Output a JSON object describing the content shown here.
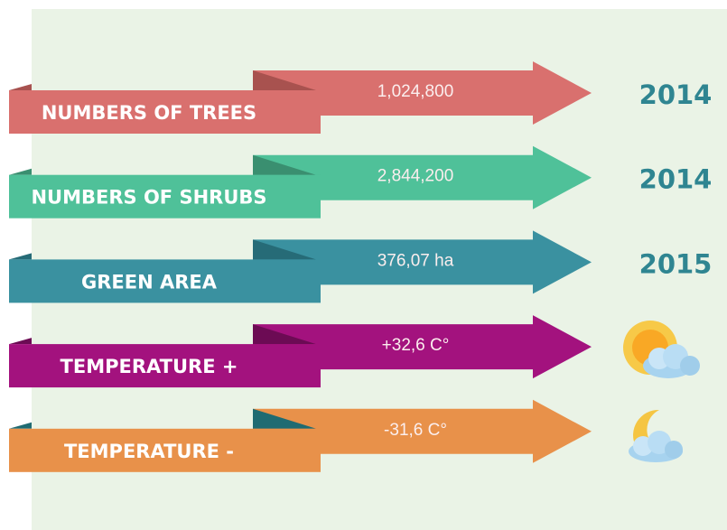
{
  "rows": [
    {
      "label": "NUMBERS OF TREES",
      "value": "1,024,800",
      "year": "2014",
      "color": "#d9706e",
      "fold": "#a8524f"
    },
    {
      "label": "NUMBERS OF SHRUBS",
      "value": "2,844,200",
      "year": "2014",
      "color": "#4fc199",
      "fold": "#3a8f70"
    },
    {
      "label": "GREEN AREA",
      "value": "376,07 ha",
      "year": "2015",
      "color": "#3a91a0",
      "fold": "#266b77"
    },
    {
      "label": "TEMPERATURE +",
      "value": "+32,6 C°",
      "color": "#a3127e",
      "fold": "#6c0b54"
    },
    {
      "label": "TEMPERATURE -",
      "value": "-31,6 C°",
      "color": "#e8914a",
      "fold": "#1f6b72"
    }
  ]
}
